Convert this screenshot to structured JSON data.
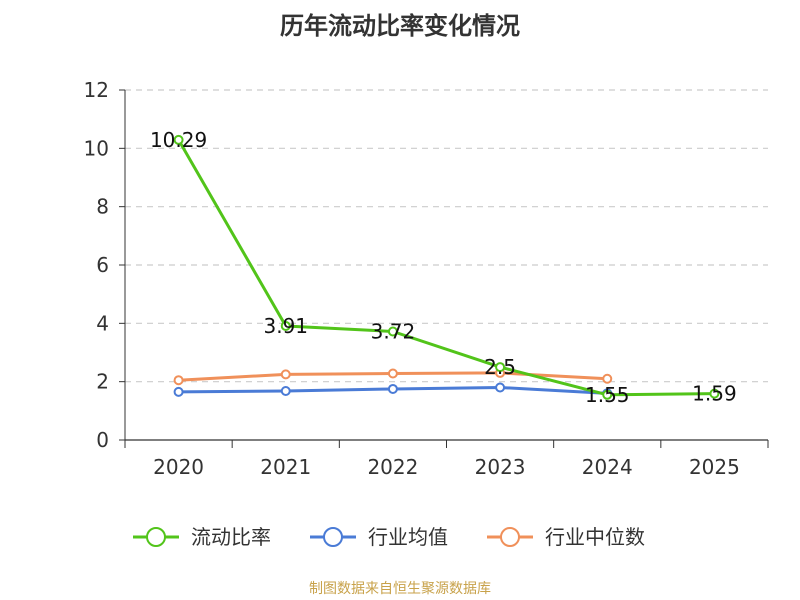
{
  "title": "历年流动比率变化情况",
  "source": "制图数据来自恒生聚源数据库",
  "chart_data": {
    "type": "line",
    "title": "历年流动比率变化情况",
    "categories": [
      "2020",
      "2021",
      "2022",
      "2023",
      "2024",
      "2025"
    ],
    "ylim": [
      0,
      12
    ],
    "yticks": [
      0,
      2,
      4,
      6,
      8,
      10,
      12
    ],
    "grid": true,
    "legend_position": "bottom",
    "series": [
      {
        "name": "流动比率",
        "color": "#52c41a",
        "values": [
          10.29,
          3.91,
          3.72,
          2.5,
          1.55,
          1.59
        ],
        "labels": [
          "10.29",
          "3.91",
          "3.72",
          "2.5",
          "1.55",
          "1.59"
        ]
      },
      {
        "name": "行业均值",
        "color": "#4a7bd6",
        "values": [
          1.65,
          1.68,
          1.75,
          1.8,
          1.6,
          null
        ]
      },
      {
        "name": "行业中位数",
        "color": "#f0905a",
        "values": [
          2.05,
          2.25,
          2.28,
          2.3,
          2.1,
          null
        ]
      }
    ]
  }
}
